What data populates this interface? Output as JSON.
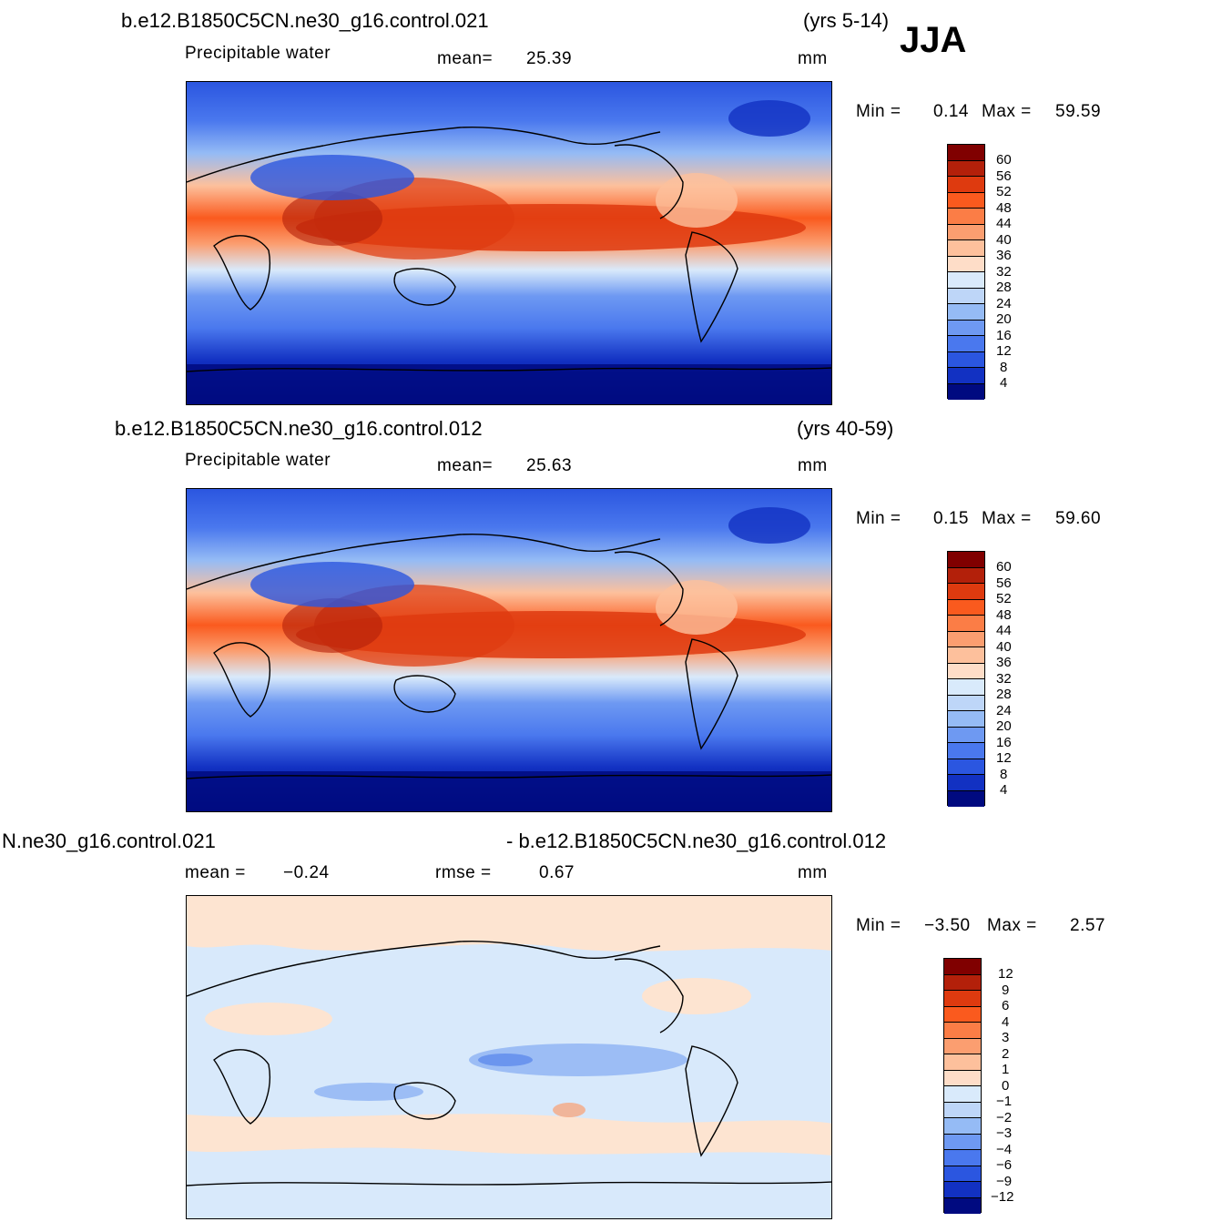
{
  "season": "JJA",
  "panels": [
    {
      "case": "b.e12.B1850C5CN.ne30_g16.control.021",
      "years": "(yrs 5-14)",
      "variable": "Precipitable  water",
      "stat_label": "mean=",
      "stat_value": "25.39",
      "units": "mm",
      "min_label": "Min  =",
      "min_value": "0.14",
      "max_label": "Max  =",
      "max_value": "59.59",
      "colorbar_labels": [
        "60",
        "56",
        "52",
        "48",
        "44",
        "40",
        "36",
        "32",
        "28",
        "24",
        "20",
        "16",
        "12",
        "8",
        "4"
      ]
    },
    {
      "case": "b.e12.B1850C5CN.ne30_g16.control.012",
      "years": "(yrs 40-59)",
      "variable": "Precipitable  water",
      "stat_label": "mean=",
      "stat_value": "25.63",
      "units": "mm",
      "min_label": "Min  =",
      "min_value": "0.15",
      "max_label": "Max  =",
      "max_value": "59.60",
      "colorbar_labels": [
        "60",
        "56",
        "52",
        "48",
        "44",
        "40",
        "36",
        "32",
        "28",
        "24",
        "20",
        "16",
        "12",
        "8",
        "4"
      ]
    },
    {
      "case_left": "N.ne30_g16.control.021",
      "case_right": "- b.e12.B1850C5CN.ne30_g16.control.012",
      "mean_label": "mean  =",
      "mean_value": "−0.24",
      "rmse_label": "rmse  =",
      "rmse_value": "0.67",
      "units": "mm",
      "min_label": "Min  =",
      "min_value": "−3.50",
      "max_label": "Max  =",
      "max_value": "2.57",
      "colorbar_labels": [
        "12",
        "9",
        "6",
        "4",
        "3",
        "2",
        "1",
        "0",
        "−1",
        "−2",
        "−3",
        "−4",
        "−6",
        "−9",
        "−12"
      ]
    }
  ],
  "colors": {
    "scale": [
      "#800000",
      "#b3200a",
      "#de3a0f",
      "#fa5a1e",
      "#fb7d46",
      "#fb9e70",
      "#fdc09c",
      "#feddc8",
      "#d9eafb",
      "#bed6f8",
      "#95bbf5",
      "#6e99f2",
      "#4a78ee",
      "#2b56e0",
      "#1231c2",
      "#000a80"
    ],
    "diff_bg": "#d8e9fb",
    "diff_pos": "#fde4d1",
    "diff_neg": "#9cbdf5",
    "diff_neg2": "#6b95ee",
    "coast": "#000000"
  }
}
